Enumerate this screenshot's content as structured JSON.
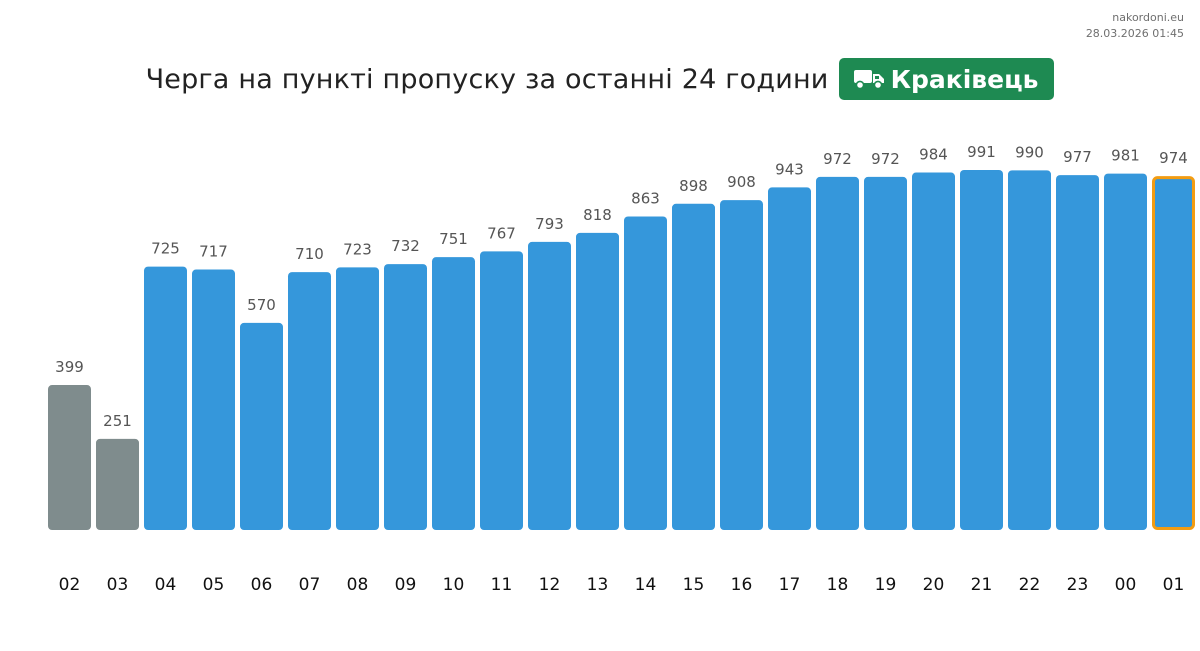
{
  "meta": {
    "site": "nakordoni.eu",
    "timestamp": "28.03.2026 01:45"
  },
  "header": {
    "title": "Черга на пункті пропуску за останні 24 години",
    "checkpoint": "Краківець",
    "checkpoint_icon": "truck-icon"
  },
  "colors": {
    "bar": "#3597db",
    "bar_muted": "#7f8c8d",
    "highlight_border": "#f39c12",
    "badge": "#1e8a52"
  },
  "chart_data": {
    "type": "bar",
    "title": "Черга на пункті пропуску за останні 24 години",
    "xlabel": "",
    "ylabel": "",
    "categories": [
      "02",
      "03",
      "04",
      "05",
      "06",
      "07",
      "08",
      "09",
      "10",
      "11",
      "12",
      "13",
      "14",
      "15",
      "16",
      "17",
      "18",
      "19",
      "20",
      "21",
      "22",
      "23",
      "00",
      "01"
    ],
    "values": [
      399,
      251,
      725,
      717,
      570,
      710,
      723,
      732,
      751,
      767,
      793,
      818,
      863,
      898,
      908,
      943,
      972,
      972,
      984,
      991,
      990,
      977,
      981,
      974
    ],
    "muted_categories": [
      "02",
      "03"
    ],
    "highlighted_category": "01",
    "ylim": [
      0,
      991
    ],
    "grid": false,
    "legend": "none"
  }
}
